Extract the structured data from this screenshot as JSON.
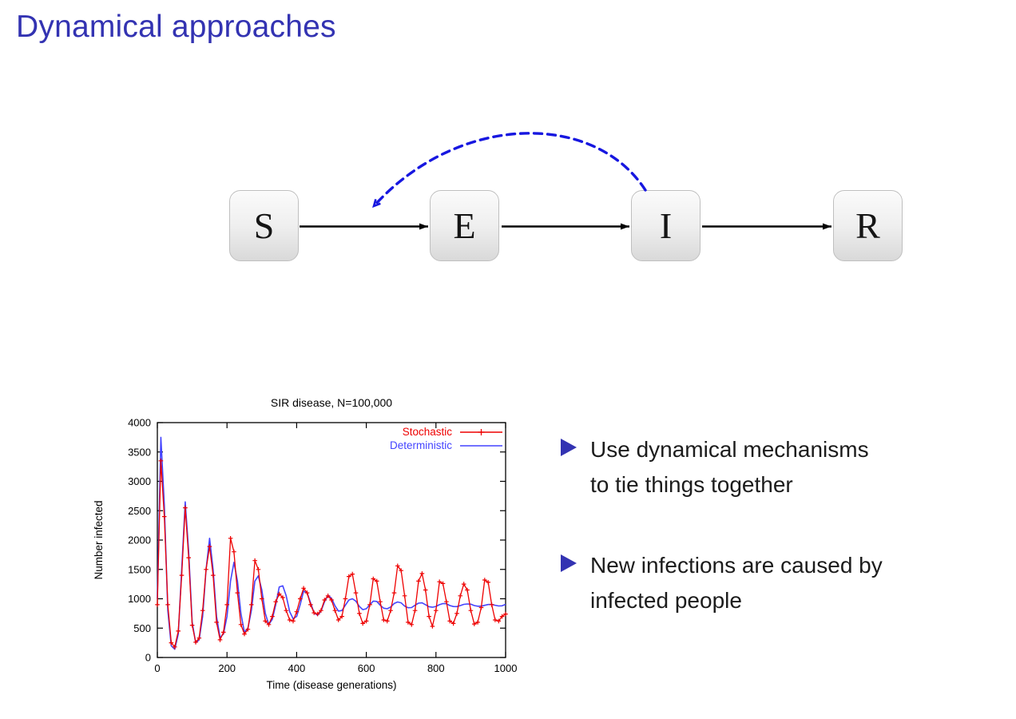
{
  "slide": {
    "title": "Dynamical approaches",
    "title_color": "#3333b2",
    "background": "#ffffff"
  },
  "diagram": {
    "compartments": [
      {
        "label": "S"
      },
      {
        "label": "E"
      },
      {
        "label": "I"
      },
      {
        "label": "R"
      }
    ],
    "flows": [
      "S to E",
      "E to I",
      "I to R"
    ],
    "feedback": {
      "from": "I",
      "to": "S-E-arrow",
      "line_style": "dashed",
      "color": "#1717e0"
    }
  },
  "bullets": [
    {
      "lines": [
        "Use dynamical mechanisms",
        "to tie things together"
      ]
    },
    {
      "lines": [
        "New infections are caused by",
        "infected people"
      ]
    }
  ],
  "chart_data": {
    "type": "line",
    "title": "SIR disease, N=100,000",
    "xlabel": "Time (disease generations)",
    "ylabel": "Number infected",
    "xlim": [
      0,
      1000
    ],
    "ylim": [
      0,
      4000
    ],
    "xticks": [
      0,
      200,
      400,
      600,
      800,
      1000
    ],
    "yticks": [
      0,
      500,
      1000,
      1500,
      2000,
      2500,
      3000,
      3500,
      4000
    ],
    "grid": false,
    "legend_position": "top-right",
    "series": [
      {
        "name": "Stochastic",
        "color": "#ee0000",
        "marker": "plus",
        "points": [
          [
            0,
            900
          ],
          [
            10,
            3350
          ],
          [
            20,
            2400
          ],
          [
            30,
            900
          ],
          [
            40,
            250
          ],
          [
            50,
            180
          ],
          [
            60,
            450
          ],
          [
            70,
            1400
          ],
          [
            80,
            2550
          ],
          [
            90,
            1700
          ],
          [
            100,
            550
          ],
          [
            110,
            260
          ],
          [
            120,
            330
          ],
          [
            130,
            800
          ],
          [
            140,
            1500
          ],
          [
            150,
            1890
          ],
          [
            160,
            1400
          ],
          [
            170,
            600
          ],
          [
            180,
            300
          ],
          [
            190,
            430
          ],
          [
            200,
            900
          ],
          [
            210,
            2030
          ],
          [
            220,
            1800
          ],
          [
            230,
            1100
          ],
          [
            240,
            560
          ],
          [
            250,
            400
          ],
          [
            260,
            480
          ],
          [
            270,
            900
          ],
          [
            280,
            1650
          ],
          [
            290,
            1500
          ],
          [
            300,
            1000
          ],
          [
            310,
            620
          ],
          [
            320,
            560
          ],
          [
            330,
            700
          ],
          [
            340,
            950
          ],
          [
            350,
            1080
          ],
          [
            360,
            1020
          ],
          [
            370,
            800
          ],
          [
            380,
            640
          ],
          [
            390,
            620
          ],
          [
            400,
            780
          ],
          [
            410,
            1000
          ],
          [
            420,
            1180
          ],
          [
            430,
            1100
          ],
          [
            440,
            900
          ],
          [
            450,
            760
          ],
          [
            460,
            740
          ],
          [
            470,
            800
          ],
          [
            480,
            980
          ],
          [
            490,
            1050
          ],
          [
            500,
            980
          ],
          [
            510,
            800
          ],
          [
            520,
            640
          ],
          [
            530,
            700
          ],
          [
            540,
            1000
          ],
          [
            550,
            1380
          ],
          [
            560,
            1420
          ],
          [
            570,
            1100
          ],
          [
            580,
            750
          ],
          [
            590,
            580
          ],
          [
            600,
            620
          ],
          [
            610,
            900
          ],
          [
            620,
            1340
          ],
          [
            630,
            1300
          ],
          [
            640,
            950
          ],
          [
            650,
            640
          ],
          [
            660,
            620
          ],
          [
            670,
            800
          ],
          [
            680,
            1100
          ],
          [
            690,
            1560
          ],
          [
            700,
            1480
          ],
          [
            710,
            1050
          ],
          [
            720,
            600
          ],
          [
            730,
            560
          ],
          [
            740,
            800
          ],
          [
            750,
            1300
          ],
          [
            760,
            1430
          ],
          [
            770,
            1150
          ],
          [
            780,
            700
          ],
          [
            790,
            530
          ],
          [
            800,
            800
          ],
          [
            810,
            1290
          ],
          [
            820,
            1260
          ],
          [
            830,
            950
          ],
          [
            840,
            620
          ],
          [
            850,
            580
          ],
          [
            860,
            750
          ],
          [
            870,
            1050
          ],
          [
            880,
            1250
          ],
          [
            890,
            1150
          ],
          [
            900,
            800
          ],
          [
            910,
            570
          ],
          [
            920,
            600
          ],
          [
            930,
            850
          ],
          [
            940,
            1320
          ],
          [
            950,
            1280
          ],
          [
            960,
            900
          ],
          [
            970,
            640
          ],
          [
            980,
            620
          ],
          [
            990,
            700
          ],
          [
            1000,
            740
          ]
        ]
      },
      {
        "name": "Deterministic",
        "color": "#4444ff",
        "marker": "none",
        "points": [
          [
            0,
            1000
          ],
          [
            10,
            3750
          ],
          [
            20,
            2600
          ],
          [
            30,
            800
          ],
          [
            40,
            200
          ],
          [
            50,
            140
          ],
          [
            60,
            400
          ],
          [
            70,
            1500
          ],
          [
            80,
            2650
          ],
          [
            90,
            1800
          ],
          [
            100,
            600
          ],
          [
            110,
            250
          ],
          [
            120,
            300
          ],
          [
            130,
            700
          ],
          [
            140,
            1500
          ],
          [
            150,
            2030
          ],
          [
            160,
            1500
          ],
          [
            170,
            700
          ],
          [
            180,
            340
          ],
          [
            190,
            400
          ],
          [
            200,
            700
          ],
          [
            210,
            1300
          ],
          [
            220,
            1620
          ],
          [
            230,
            1300
          ],
          [
            240,
            750
          ],
          [
            250,
            430
          ],
          [
            260,
            500
          ],
          [
            270,
            800
          ],
          [
            280,
            1300
          ],
          [
            290,
            1390
          ],
          [
            300,
            1150
          ],
          [
            310,
            750
          ],
          [
            320,
            560
          ],
          [
            330,
            650
          ],
          [
            340,
            900
          ],
          [
            350,
            1200
          ],
          [
            360,
            1220
          ],
          [
            370,
            1050
          ],
          [
            380,
            780
          ],
          [
            390,
            660
          ],
          [
            400,
            700
          ],
          [
            410,
            900
          ],
          [
            420,
            1130
          ],
          [
            430,
            1100
          ],
          [
            440,
            930
          ],
          [
            450,
            760
          ],
          [
            460,
            720
          ],
          [
            470,
            790
          ],
          [
            480,
            950
          ],
          [
            490,
            1060
          ],
          [
            500,
            1010
          ],
          [
            510,
            880
          ],
          [
            520,
            790
          ],
          [
            530,
            800
          ],
          [
            540,
            890
          ],
          [
            550,
            980
          ],
          [
            560,
            1000
          ],
          [
            570,
            960
          ],
          [
            580,
            870
          ],
          [
            590,
            815
          ],
          [
            600,
            830
          ],
          [
            610,
            900
          ],
          [
            620,
            960
          ],
          [
            630,
            955
          ],
          [
            640,
            890
          ],
          [
            650,
            840
          ],
          [
            660,
            830
          ],
          [
            670,
            860
          ],
          [
            680,
            920
          ],
          [
            690,
            945
          ],
          [
            700,
            930
          ],
          [
            710,
            875
          ],
          [
            720,
            847
          ],
          [
            730,
            850
          ],
          [
            740,
            890
          ],
          [
            750,
            925
          ],
          [
            760,
            930
          ],
          [
            770,
            900
          ],
          [
            780,
            865
          ],
          [
            790,
            856
          ],
          [
            800,
            870
          ],
          [
            810,
            900
          ],
          [
            820,
            918
          ],
          [
            830,
            915
          ],
          [
            840,
            885
          ],
          [
            850,
            868
          ],
          [
            860,
            866
          ],
          [
            870,
            885
          ],
          [
            880,
            905
          ],
          [
            890,
            911
          ],
          [
            900,
            908
          ],
          [
            910,
            885
          ],
          [
            920,
            874
          ],
          [
            930,
            873
          ],
          [
            940,
            888
          ],
          [
            950,
            902
          ],
          [
            960,
            903
          ],
          [
            970,
            890
          ],
          [
            980,
            878
          ],
          [
            990,
            880
          ],
          [
            1000,
            905
          ]
        ]
      }
    ]
  }
}
